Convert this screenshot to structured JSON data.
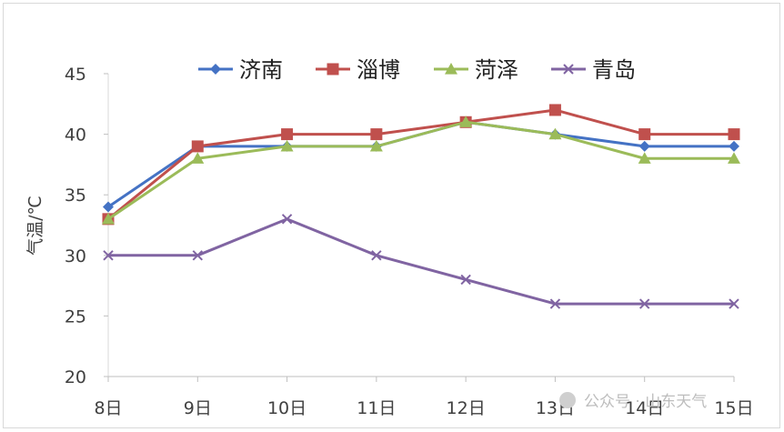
{
  "chart_data": {
    "type": "line",
    "title": "",
    "xlabel": "",
    "ylabel": "气温/℃",
    "categories": [
      "8日",
      "9日",
      "10日",
      "11日",
      "12日",
      "13日",
      "14日",
      "15日"
    ],
    "ylim": [
      20,
      45
    ],
    "yticks": [
      20,
      25,
      30,
      35,
      40,
      45
    ],
    "grid": false,
    "legend_position": "top",
    "series": [
      {
        "name": "济南",
        "color": "#4472C4",
        "marker": "diamond",
        "values": [
          34,
          39,
          39,
          39,
          41,
          40,
          39,
          39
        ]
      },
      {
        "name": "淄博",
        "color": "#C0504D",
        "marker": "square",
        "values": [
          33,
          39,
          40,
          40,
          41,
          42,
          40,
          40
        ]
      },
      {
        "name": "菏泽",
        "color": "#9BBB59",
        "marker": "triangle",
        "values": [
          33,
          38,
          39,
          39,
          41,
          40,
          38,
          38
        ]
      },
      {
        "name": "青岛",
        "color": "#8064A2",
        "marker": "x",
        "values": [
          30,
          30,
          33,
          30,
          28,
          26,
          26,
          26
        ]
      }
    ]
  },
  "watermark": {
    "text": "公众号 · 山东天气"
  }
}
